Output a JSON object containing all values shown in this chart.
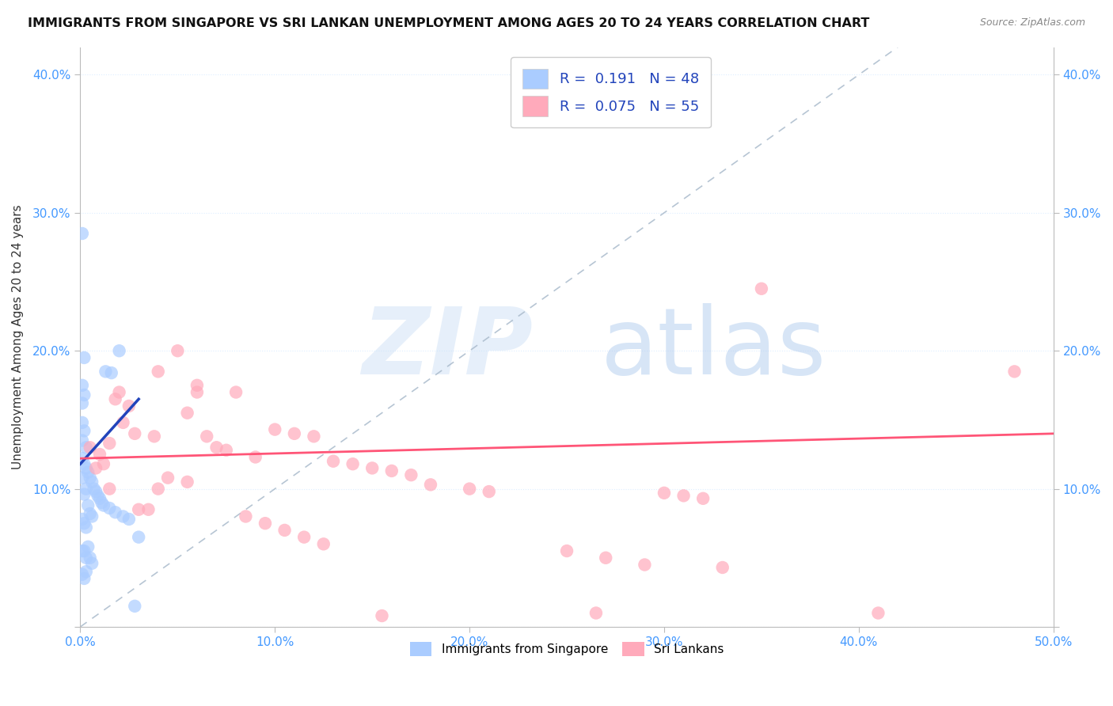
{
  "title": "IMMIGRANTS FROM SINGAPORE VS SRI LANKAN UNEMPLOYMENT AMONG AGES 20 TO 24 YEARS CORRELATION CHART",
  "source": "Source: ZipAtlas.com",
  "ylabel": "Unemployment Among Ages 20 to 24 years",
  "xlim": [
    0.0,
    0.5
  ],
  "ylim": [
    0.0,
    0.42
  ],
  "x_ticks": [
    0.0,
    0.1,
    0.2,
    0.3,
    0.4,
    0.5
  ],
  "x_tick_labels": [
    "0.0%",
    "10.0%",
    "20.0%",
    "30.0%",
    "40.0%",
    "50.0%"
  ],
  "y_ticks": [
    0.0,
    0.1,
    0.2,
    0.3,
    0.4
  ],
  "y_tick_labels": [
    "",
    "10.0%",
    "20.0%",
    "30.0%",
    "40.0%"
  ],
  "r_blue": "0.191",
  "n_blue": "48",
  "r_pink": "0.075",
  "n_pink": "55",
  "blue_color": "#aaccff",
  "pink_color": "#ffaabb",
  "blue_line_color": "#2244bb",
  "pink_line_color": "#ff5577",
  "diagonal_color": "#aabbcc",
  "watermark_zip": "ZIP",
  "watermark_atlas": "atlas",
  "blue_scatter_x": [
    0.001,
    0.001,
    0.001,
    0.001,
    0.001,
    0.001,
    0.001,
    0.001,
    0.001,
    0.001,
    0.002,
    0.002,
    0.002,
    0.002,
    0.002,
    0.002,
    0.002,
    0.002,
    0.003,
    0.003,
    0.003,
    0.003,
    0.003,
    0.003,
    0.004,
    0.004,
    0.004,
    0.005,
    0.005,
    0.005,
    0.006,
    0.006,
    0.006,
    0.007,
    0.008,
    0.009,
    0.01,
    0.011,
    0.012,
    0.013,
    0.015,
    0.016,
    0.018,
    0.02,
    0.022,
    0.025,
    0.028,
    0.03
  ],
  "blue_scatter_y": [
    0.285,
    0.175,
    0.162,
    0.148,
    0.135,
    0.122,
    0.108,
    0.078,
    0.055,
    0.038,
    0.195,
    0.168,
    0.142,
    0.118,
    0.096,
    0.075,
    0.055,
    0.035,
    0.13,
    0.115,
    0.1,
    0.072,
    0.05,
    0.04,
    0.112,
    0.088,
    0.058,
    0.108,
    0.082,
    0.05,
    0.105,
    0.08,
    0.046,
    0.1,
    0.098,
    0.095,
    0.093,
    0.09,
    0.088,
    0.185,
    0.086,
    0.184,
    0.083,
    0.2,
    0.08,
    0.078,
    0.015,
    0.065
  ],
  "pink_scatter_x": [
    0.005,
    0.008,
    0.01,
    0.012,
    0.015,
    0.015,
    0.018,
    0.02,
    0.022,
    0.025,
    0.028,
    0.03,
    0.035,
    0.038,
    0.04,
    0.04,
    0.045,
    0.05,
    0.055,
    0.055,
    0.06,
    0.06,
    0.065,
    0.07,
    0.075,
    0.08,
    0.085,
    0.09,
    0.095,
    0.1,
    0.105,
    0.11,
    0.115,
    0.12,
    0.125,
    0.13,
    0.14,
    0.15,
    0.155,
    0.16,
    0.17,
    0.18,
    0.2,
    0.21,
    0.25,
    0.265,
    0.27,
    0.29,
    0.3,
    0.31,
    0.32,
    0.33,
    0.35,
    0.41,
    0.48
  ],
  "pink_scatter_y": [
    0.13,
    0.115,
    0.125,
    0.118,
    0.133,
    0.1,
    0.165,
    0.17,
    0.148,
    0.16,
    0.14,
    0.085,
    0.085,
    0.138,
    0.185,
    0.1,
    0.108,
    0.2,
    0.155,
    0.105,
    0.175,
    0.17,
    0.138,
    0.13,
    0.128,
    0.17,
    0.08,
    0.123,
    0.075,
    0.143,
    0.07,
    0.14,
    0.065,
    0.138,
    0.06,
    0.12,
    0.118,
    0.115,
    0.008,
    0.113,
    0.11,
    0.103,
    0.1,
    0.098,
    0.055,
    0.01,
    0.05,
    0.045,
    0.097,
    0.095,
    0.093,
    0.043,
    0.245,
    0.01,
    0.185
  ],
  "blue_line_x": [
    0.0,
    0.03
  ],
  "blue_line_y": [
    0.118,
    0.165
  ],
  "pink_line_x": [
    0.0,
    0.5
  ],
  "pink_line_y": [
    0.122,
    0.14
  ]
}
